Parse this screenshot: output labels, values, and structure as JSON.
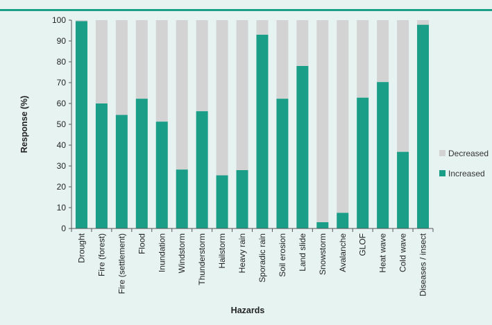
{
  "chart_data": {
    "type": "bar",
    "stacked": true,
    "title": "",
    "xlabel": "Hazards",
    "ylabel": "Response (%)",
    "ylim": [
      0,
      100
    ],
    "yticks": [
      0,
      10,
      20,
      30,
      40,
      50,
      60,
      70,
      80,
      90,
      100
    ],
    "grid": false,
    "legend_position": "right",
    "categories": [
      "Drought",
      "Fire (forest)",
      "Fire (settlement)",
      "Flood",
      "Inundation",
      "Windstorm",
      "Thunderstorm",
      "Hailstorm",
      "Heavy rain",
      "Sporadic rain",
      "Soil erosion",
      "Land slide",
      "Snowstorm",
      "Avalanche",
      "GLOF",
      "Heat wave",
      "Cold wave",
      "Diseases / insect"
    ],
    "series": [
      {
        "name": "Increased",
        "color": "#1a9e87",
        "values": [
          99.5,
          60,
          54.5,
          62.3,
          51.3,
          28.3,
          56.3,
          25.5,
          28,
          93,
          62.3,
          78,
          3,
          7.5,
          62.8,
          70.3,
          36.8,
          97.8
        ]
      },
      {
        "name": "Decreased",
        "color": "#d3d3d3",
        "values": [
          0.5,
          40,
          45.5,
          37.7,
          48.7,
          71.7,
          43.7,
          74.5,
          72,
          7,
          37.7,
          22,
          97,
          92.5,
          37.2,
          29.7,
          63.2,
          2.2
        ]
      }
    ],
    "legend": [
      {
        "name": "Decreased",
        "color": "#d3d3d3"
      },
      {
        "name": "Increased",
        "color": "#1a9e87"
      }
    ]
  },
  "colors": {
    "background": "#e6f3f1",
    "accent": "#1a9e87"
  }
}
